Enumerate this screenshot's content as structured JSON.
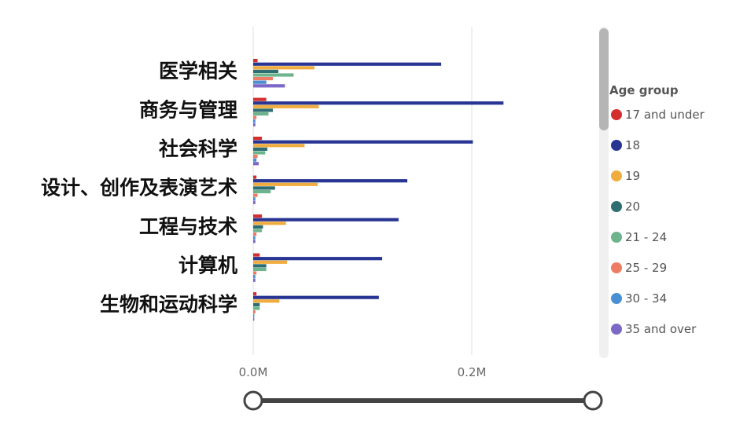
{
  "chart_data": {
    "type": "bar",
    "orientation": "horizontal",
    "categories": [
      "医学相关",
      "商务与管理",
      "社会科学",
      "设计、创作及表演艺术",
      "工程与技术",
      "计算机",
      "生物和运动科学"
    ],
    "series": [
      {
        "name": "17 and under",
        "color": "#d32f2f",
        "values": [
          4000,
          12000,
          8000,
          3000,
          8000,
          6000,
          3000
        ]
      },
      {
        "name": "18",
        "color": "#283593",
        "values": [
          172000,
          229000,
          201000,
          141000,
          133000,
          118000,
          115000
        ]
      },
      {
        "name": "19",
        "color": "#f0ad3f",
        "values": [
          56000,
          60000,
          47000,
          59000,
          30000,
          31000,
          24000
        ]
      },
      {
        "name": "20",
        "color": "#2e6e73",
        "values": [
          23000,
          18000,
          13000,
          20000,
          9000,
          12000,
          6000
        ]
      },
      {
        "name": "21 - 24",
        "color": "#6db38c",
        "values": [
          37000,
          14000,
          11000,
          16000,
          8000,
          12000,
          6000
        ]
      },
      {
        "name": "25 - 29",
        "color": "#ee7b63",
        "values": [
          18000,
          3000,
          4000,
          4000,
          3000,
          3000,
          2000
        ]
      },
      {
        "name": "30 - 34",
        "color": "#4a8fd4",
        "values": [
          12000,
          2000,
          3000,
          2000,
          2000,
          2000,
          1000
        ]
      },
      {
        "name": "35 and over",
        "color": "#7c68c6",
        "values": [
          29000,
          2000,
          5000,
          2000,
          2000,
          2000,
          1000
        ]
      }
    ],
    "x_ticks": [
      "0.0M",
      "0.2M"
    ],
    "xlim": [
      0,
      0.31
    ],
    "grid": true,
    "legend": {
      "title": "Age group",
      "placement": "right"
    }
  }
}
